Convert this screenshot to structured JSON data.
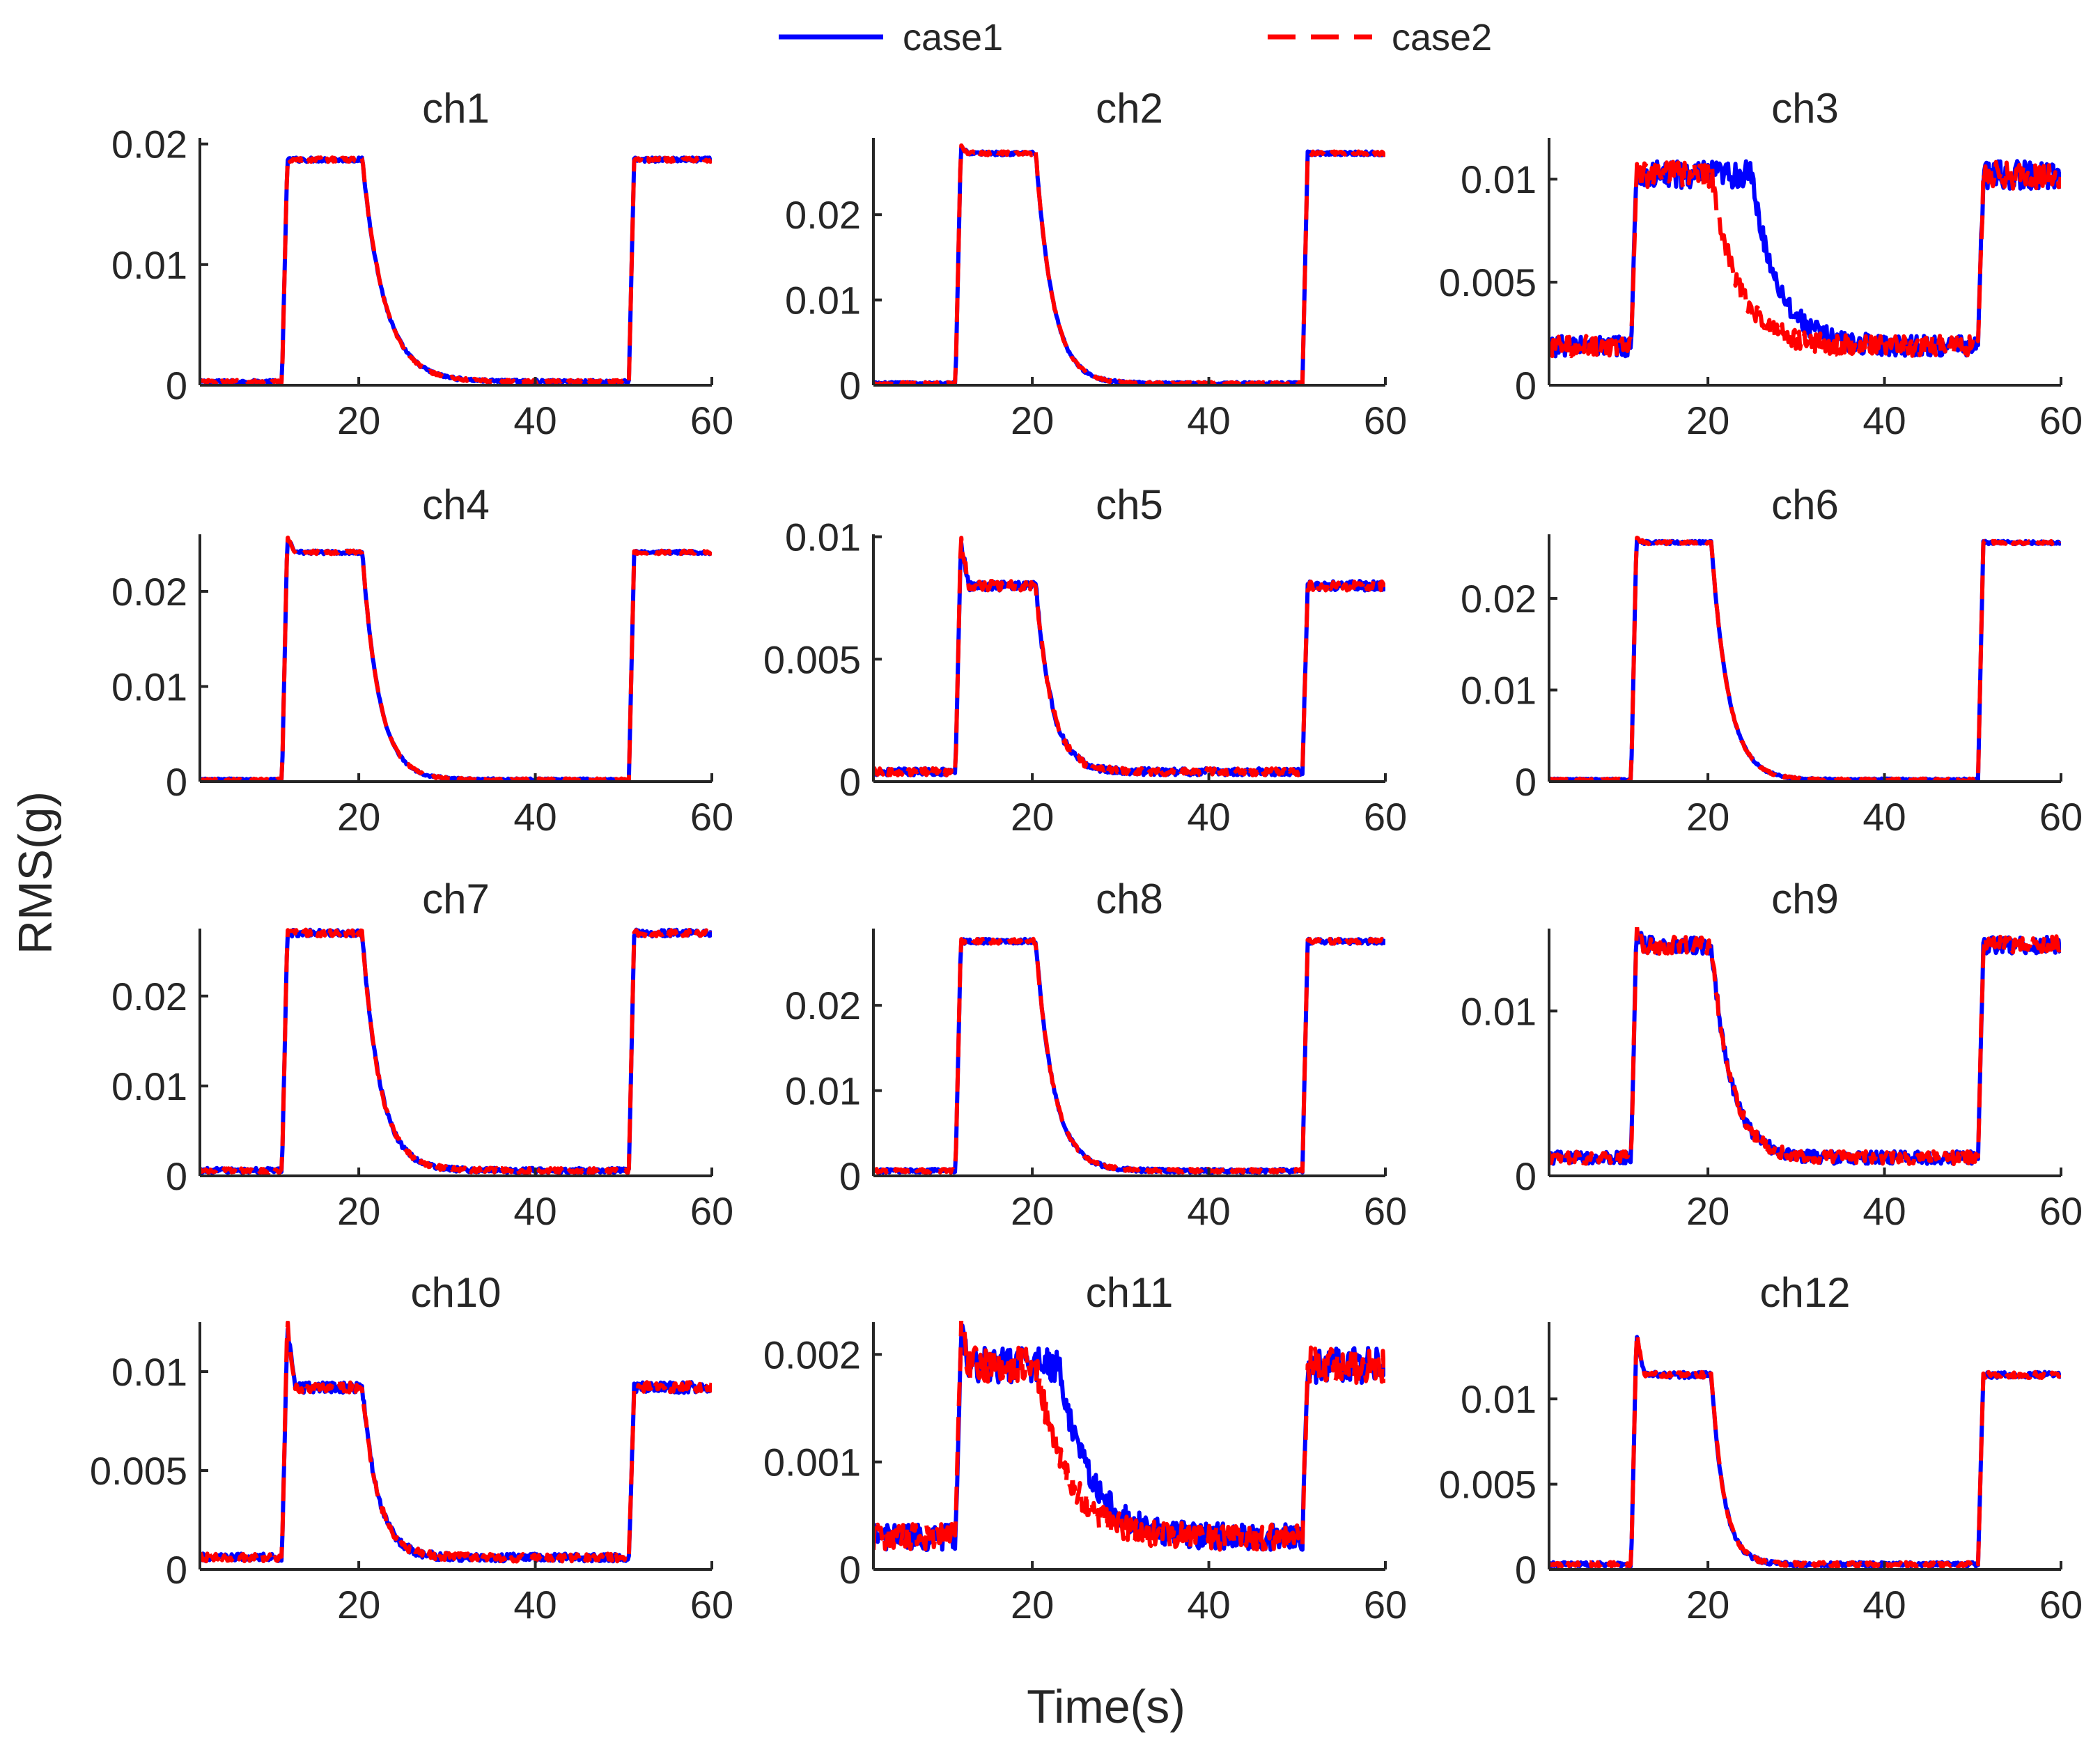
{
  "chart_data": {
    "type": "line",
    "xlabel": "Time(s)",
    "ylabel": "RMS(g)",
    "legend": {
      "placement": "top-center",
      "entries": [
        {
          "name": "case1",
          "color": "#0000ff",
          "style": "solid"
        },
        {
          "name": "case2",
          "color": "#ff0000",
          "style": "dashed"
        }
      ]
    },
    "xlim": [
      2,
      60
    ],
    "xticks": [
      {
        "value": 20,
        "label": "20"
      },
      {
        "value": 40,
        "label": "40"
      },
      {
        "value": 60,
        "label": "60"
      }
    ],
    "series_names": [
      "case1",
      "case2"
    ],
    "phase_times_s": {
      "on1": 11.3,
      "off1": 20.4,
      "on2": 50.6
    },
    "panels": [
      {
        "title": "ch1",
        "ylim": [
          0,
          0.0205
        ],
        "yticks": [
          {
            "value": 0,
            "label": "0"
          },
          {
            "value": 0.01,
            "label": "0.01"
          },
          {
            "value": 0.02,
            "label": "0.02"
          }
        ],
        "high": 0.0187,
        "low": 0.0003,
        "tau": 2.5,
        "noise": 0.00012,
        "spike": 0
      },
      {
        "title": "ch2",
        "ylim": [
          0,
          0.029
        ],
        "yticks": [
          {
            "value": 0,
            "label": "0"
          },
          {
            "value": 0.01,
            "label": "0.01"
          },
          {
            "value": 0.02,
            "label": "0.02"
          }
        ],
        "high": 0.0272,
        "low": 0.0002,
        "tau": 1.9,
        "noise": 0.00015,
        "spike": 0.0008
      },
      {
        "title": "ch3",
        "ylim": [
          0,
          0.012
        ],
        "yticks": [
          {
            "value": 0,
            "label": "0"
          },
          {
            "value": 0.005,
            "label": "0.005"
          },
          {
            "value": 0.01,
            "label": "0.01"
          }
        ],
        "high": 0.0102,
        "low": 0.0019,
        "tau": 3.0,
        "noise": 0.00045,
        "spike": 0,
        "lag_case1": 4.5
      },
      {
        "title": "ch4",
        "ylim": [
          0,
          0.026
        ],
        "yticks": [
          {
            "value": 0,
            "label": "0"
          },
          {
            "value": 0.01,
            "label": "0.01"
          },
          {
            "value": 0.02,
            "label": "0.02"
          }
        ],
        "high": 0.0241,
        "low": 0.0002,
        "tau": 1.9,
        "noise": 0.00012,
        "spike": 0.0015
      },
      {
        "title": "ch5",
        "ylim": [
          0,
          0.0101
        ],
        "yticks": [
          {
            "value": 0,
            "label": "0"
          },
          {
            "value": 0.005,
            "label": "0.005"
          },
          {
            "value": 0.01,
            "label": "0.01"
          }
        ],
        "high": 0.008,
        "low": 0.0004,
        "tau": 1.8,
        "noise": 0.00013,
        "spike": 0.0019
      },
      {
        "title": "ch6",
        "ylim": [
          0,
          0.027
        ],
        "yticks": [
          {
            "value": 0,
            "label": "0"
          },
          {
            "value": 0.01,
            "label": "0.01"
          },
          {
            "value": 0.02,
            "label": "0.02"
          }
        ],
        "high": 0.0261,
        "low": 0.0002,
        "tau": 1.9,
        "noise": 0.00012,
        "spike": 0.0004
      },
      {
        "title": "ch7",
        "ylim": [
          0,
          0.0275
        ],
        "yticks": [
          {
            "value": 0,
            "label": "0"
          },
          {
            "value": 0.01,
            "label": "0.01"
          },
          {
            "value": 0.02,
            "label": "0.02"
          }
        ],
        "high": 0.027,
        "low": 0.0006,
        "tau": 2.0,
        "noise": 0.00025,
        "spike": 0
      },
      {
        "title": "ch8",
        "ylim": [
          0,
          0.029
        ],
        "yticks": [
          {
            "value": 0,
            "label": "0"
          },
          {
            "value": 0.01,
            "label": "0.01"
          },
          {
            "value": 0.02,
            "label": "0.02"
          }
        ],
        "high": 0.0275,
        "low": 0.0006,
        "tau": 2.0,
        "noise": 0.0002,
        "spike": 0
      },
      {
        "title": "ch9",
        "ylim": [
          0,
          0.015
        ],
        "yticks": [
          {
            "value": 0,
            "label": "0"
          },
          {
            "value": 0.01,
            "label": "0.01"
          }
        ],
        "high": 0.014,
        "low": 0.0011,
        "tau": 2.2,
        "noise": 0.00035,
        "spike": 0.0007
      },
      {
        "title": "ch10",
        "ylim": [
          0,
          0.0125
        ],
        "yticks": [
          {
            "value": 0,
            "label": "0"
          },
          {
            "value": 0.005,
            "label": "0.005"
          },
          {
            "value": 0.01,
            "label": "0.01"
          }
        ],
        "high": 0.0092,
        "low": 0.0006,
        "tau": 1.8,
        "noise": 0.00018,
        "spike": 0.0032
      },
      {
        "title": "ch11",
        "ylim": [
          0,
          0.0023
        ],
        "yticks": [
          {
            "value": 0,
            "label": "0"
          },
          {
            "value": 0.001,
            "label": "0.001"
          },
          {
            "value": 0.002,
            "label": "0.002"
          }
        ],
        "high": 0.0019,
        "low": 0.0003,
        "tau": 3.5,
        "noise": 0.00011,
        "spike": 0.0003,
        "lag_case1": 2.5
      },
      {
        "title": "ch12",
        "ylim": [
          0,
          0.0145
        ],
        "yticks": [
          {
            "value": 0,
            "label": "0"
          },
          {
            "value": 0.005,
            "label": "0.005"
          },
          {
            "value": 0.01,
            "label": "0.01"
          }
        ],
        "high": 0.0114,
        "low": 0.0003,
        "tau": 1.4,
        "noise": 0.00012,
        "spike": 0.0024
      }
    ]
  }
}
